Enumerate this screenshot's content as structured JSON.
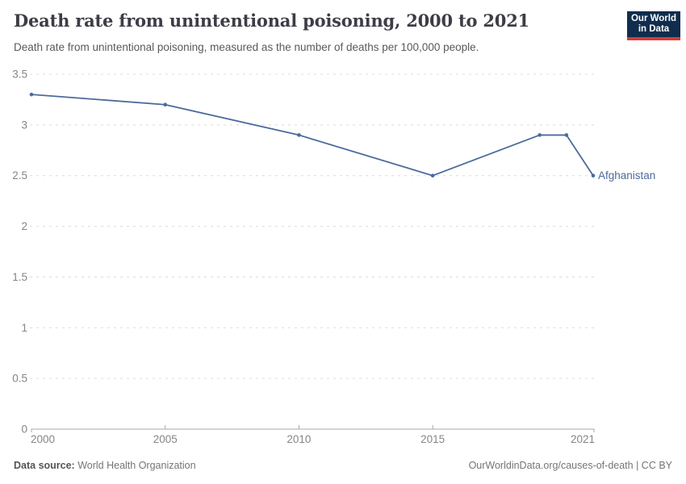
{
  "header": {
    "title": "Death rate from unintentional poisoning, 2000 to 2021",
    "subtitle": "Death rate from unintentional poisoning, measured as the number of deaths per 100,000 people.",
    "logo": {
      "line1": "Our World",
      "line2": "in Data",
      "bg_color": "#102d4e",
      "accent_color": "#d63c34"
    }
  },
  "chart_data": {
    "type": "line",
    "title": "Death rate from unintentional poisoning, 2000 to 2021",
    "xlabel": "",
    "ylabel": "",
    "x": [
      2000,
      2005,
      2010,
      2015,
      2019,
      2020,
      2021
    ],
    "series": [
      {
        "name": "Afghanistan",
        "values": [
          3.3,
          3.2,
          2.9,
          2.5,
          2.9,
          2.9,
          2.5
        ],
        "color": "#4c6a9c"
      }
    ],
    "xlim": [
      2000,
      2021
    ],
    "ylim": [
      0,
      3.5
    ],
    "xticks": [
      2000,
      2005,
      2010,
      2015,
      2021
    ],
    "yticks": [
      0,
      0.5,
      1,
      1.5,
      2,
      2.5,
      3,
      3.5
    ],
    "ytick_labels": [
      "0",
      "0.5",
      "1",
      "1.5",
      "2",
      "2.5",
      "3",
      "3.5"
    ],
    "grid": "horizontal-dashed",
    "legend_position": "end-of-line-label"
  },
  "footer": {
    "source_label": "Data source:",
    "source_value": " World Health Organization",
    "link": "OurWorldinData.org/causes-of-death | CC BY"
  },
  "colors": {
    "line": "#4c6a9c",
    "grid": "#dcdcdc",
    "axis": "#a8a8a8",
    "tick_label": "#858585",
    "title": "#3d3d46",
    "subtitle": "#595959",
    "footer": "#757575"
  }
}
